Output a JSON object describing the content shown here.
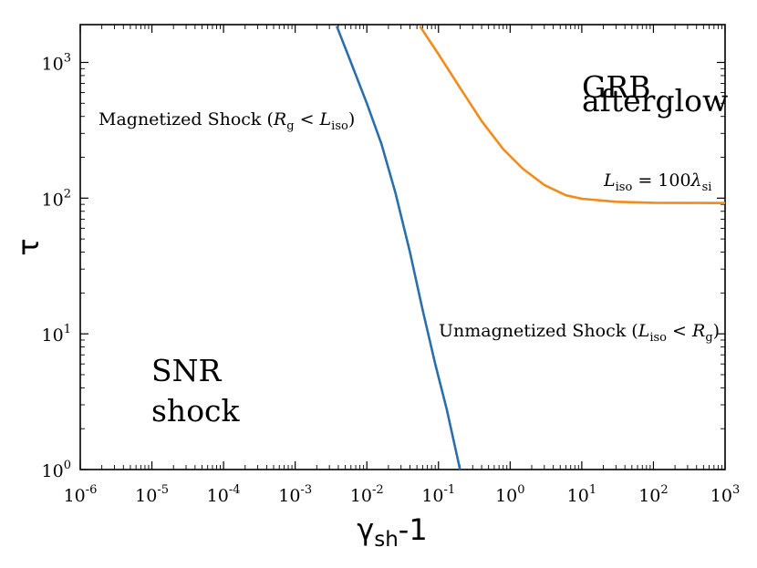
{
  "chart_data": {
    "type": "line",
    "xscale": "log",
    "yscale": "log",
    "xlim": [
      1e-06,
      1000.0
    ],
    "ylim": [
      1,
      1900.0
    ],
    "xlabel": {
      "main": "γ",
      "sub": "sh",
      "tail": "-1"
    },
    "ylabel": "τ",
    "x_ticks": [
      {
        "base": "10",
        "exp": "-6"
      },
      {
        "base": "10",
        "exp": "-5"
      },
      {
        "base": "10",
        "exp": "-4"
      },
      {
        "base": "10",
        "exp": "-3"
      },
      {
        "base": "10",
        "exp": "-2"
      },
      {
        "base": "10",
        "exp": "-1"
      },
      {
        "base": "10",
        "exp": "0"
      },
      {
        "base": "10",
        "exp": "1"
      },
      {
        "base": "10",
        "exp": "2"
      },
      {
        "base": "10",
        "exp": "3"
      }
    ],
    "y_ticks": [
      {
        "base": "10",
        "exp": "0"
      },
      {
        "base": "10",
        "exp": "1"
      },
      {
        "base": "10",
        "exp": "2"
      },
      {
        "base": "10",
        "exp": "3"
      }
    ],
    "series": [
      {
        "color": "#2a6fad",
        "x": [
          0.0038,
          0.006,
          0.01,
          0.016,
          0.025,
          0.04,
          0.06,
          0.09,
          0.13,
          0.2
        ],
        "y": [
          1850,
          1000,
          500,
          250,
          110,
          40,
          15,
          6,
          2.8,
          1
        ]
      },
      {
        "color": "#f28a1c",
        "x": [
          0.055,
          0.1,
          0.2,
          0.4,
          0.8,
          1.5,
          3,
          6,
          10,
          30,
          100,
          1000
        ],
        "y": [
          1850,
          1150,
          650,
          370,
          230,
          165,
          125,
          105,
          99,
          94,
          92.5,
          92
        ]
      }
    ],
    "annotations": {
      "magnetized": {
        "a": "Magnetized Shock (",
        "r": "R",
        "rsub": "g",
        "mid": " < ",
        "l": "L",
        "lsub": "iso",
        "b": ")"
      },
      "unmagnetized": {
        "a": "Unmagnetized Shock (",
        "l": "L",
        "lsub": "iso",
        "mid": " < ",
        "r": "R",
        "rsub": "g",
        "b": ")"
      },
      "liso": {
        "l": "L",
        "lsub": "iso",
        "eq": " = 100",
        "lam": "λ",
        "lamsub": "si"
      },
      "grb": [
        "GRB",
        "afterglow"
      ],
      "snr": [
        "SNR",
        "shock"
      ]
    }
  }
}
